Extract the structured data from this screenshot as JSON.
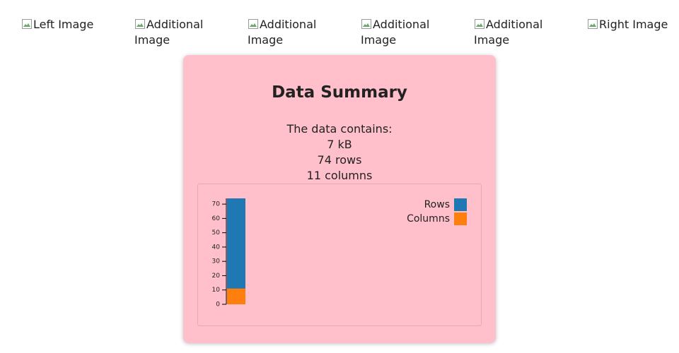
{
  "images": [
    "Left Image",
    "Additional Image",
    "Additional Image",
    "Additional Image",
    "Additional Image",
    "Right Image"
  ],
  "card": {
    "title": "Data Summary",
    "lines": [
      "The data contains:",
      "7 kB",
      "74 rows",
      "11 columns"
    ]
  },
  "chart_data": {
    "type": "bar",
    "series": [
      {
        "name": "Rows",
        "color": "#1f77b4",
        "values": [
          74
        ]
      },
      {
        "name": "Columns",
        "color": "#ff7f0e",
        "values": [
          11
        ]
      }
    ],
    "ylim": [
      0,
      74
    ],
    "yticks": [
      0,
      10,
      20,
      30,
      40,
      50,
      60,
      70
    ],
    "legend": "top-right"
  }
}
